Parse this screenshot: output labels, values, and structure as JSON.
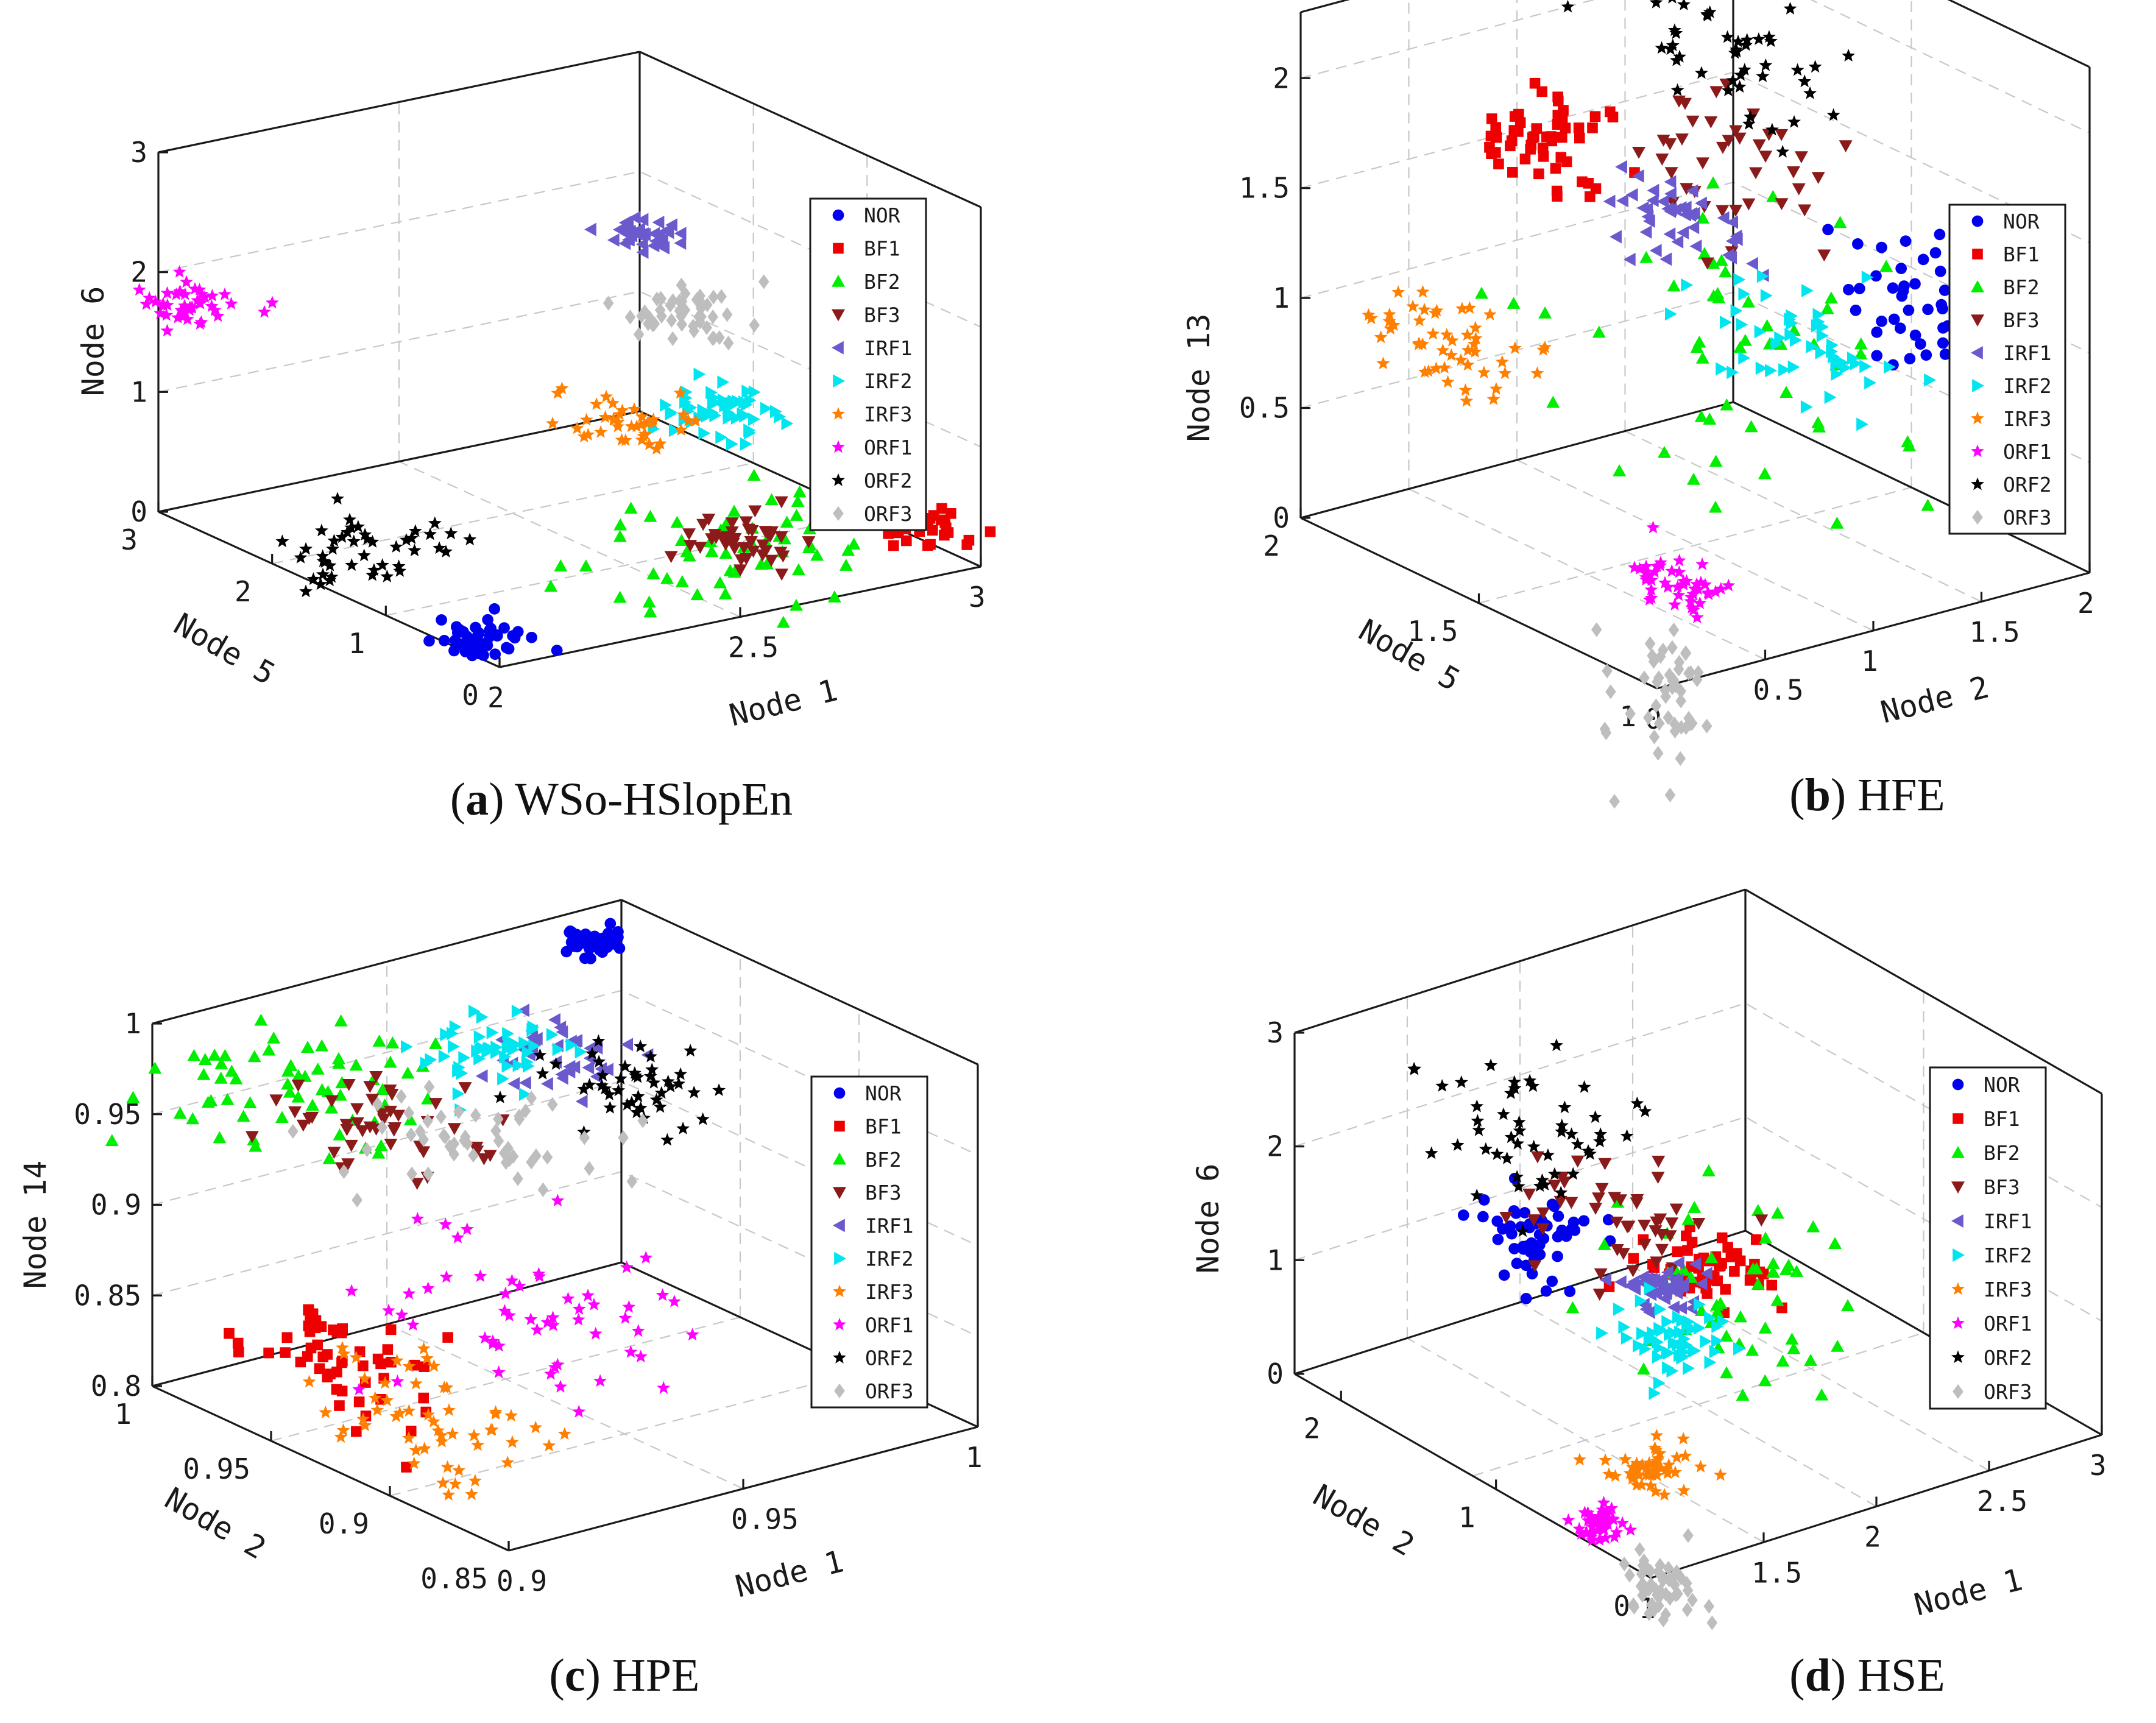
{
  "figure": {
    "series_colors": {
      "NOR": "#0000ee",
      "BF1": "#ee0000",
      "BF2": "#00ee00",
      "BF3": "#8b1a1a",
      "IRF1": "#6a5acd",
      "IRF2": "#00e5ee",
      "IRF3": "#ff7f00",
      "ORF1": "#ff00ff",
      "ORF2": "#000000",
      "ORF3": "#bebebe"
    },
    "series_markers": {
      "NOR": "circle",
      "BF1": "square",
      "BF2": "triangle-up",
      "BF3": "triangle-down",
      "IRF1": "triangle-left",
      "IRF2": "triangle-right",
      "IRF3": "star",
      "ORF1": "star",
      "ORF2": "star",
      "ORF3": "diamond"
    }
  },
  "chart_data": [
    {
      "type": "scatter",
      "panel": "a",
      "caption_letter": "a",
      "caption_text": "WSo-HSlopEn",
      "x_axis": {
        "label": "Node 1",
        "range": [
          2,
          3
        ],
        "ticks": [
          "2",
          "2.5",
          "3"
        ]
      },
      "y_axis": {
        "label": "Node 5",
        "range": [
          0,
          3
        ],
        "ticks": [
          "0",
          "1",
          "2",
          "3"
        ]
      },
      "z_axis": {
        "label": "Node 6",
        "range": [
          0,
          3
        ],
        "ticks": [
          "0",
          "1",
          "2",
          "3"
        ]
      },
      "legend": [
        "NOR",
        "BF1",
        "BF2",
        "BF3",
        "IRF1",
        "IRF2",
        "IRF3",
        "ORF1",
        "ORF2",
        "ORF3"
      ],
      "clusters": [
        {
          "name": "NOR",
          "center": [
            2.05,
            0.35,
            0.05
          ],
          "spread": [
            0.04,
            0.15,
            0.04
          ],
          "n": 45
        },
        {
          "name": "BF1",
          "center": [
            2.95,
            0.35,
            0.25
          ],
          "spread": [
            0.04,
            0.15,
            0.08
          ],
          "n": 50
        },
        {
          "name": "BF2",
          "center": [
            2.55,
            0.1,
            0.55
          ],
          "spread": [
            0.16,
            0.15,
            0.28
          ],
          "n": 60
        },
        {
          "name": "BF3",
          "center": [
            2.6,
            0.4,
            0.4
          ],
          "spread": [
            0.06,
            0.15,
            0.08
          ],
          "n": 45
        },
        {
          "name": "IRF1",
          "center": [
            2.95,
            2.7,
            1.65
          ],
          "spread": [
            0.03,
            0.1,
            0.05
          ],
          "n": 40
        },
        {
          "name": "IRF2",
          "center": [
            2.75,
            1.3,
            0.95
          ],
          "spread": [
            0.05,
            0.15,
            0.12
          ],
          "n": 55
        },
        {
          "name": "IRF3",
          "center": [
            2.5,
            1.0,
            1.2
          ],
          "spread": [
            0.05,
            0.2,
            0.05
          ],
          "n": 40
        },
        {
          "name": "ORF1",
          "center": [
            2.05,
            2.95,
            1.7
          ],
          "spread": [
            0.05,
            0.15,
            0.03
          ],
          "n": 45
        },
        {
          "name": "ORF2",
          "center": [
            2.05,
            1.4,
            0.35
          ],
          "spread": [
            0.08,
            0.2,
            0.12
          ],
          "n": 45
        },
        {
          "name": "ORF3",
          "center": [
            2.9,
            2.2,
            1.25
          ],
          "spread": [
            0.05,
            0.15,
            0.12
          ],
          "n": 50
        }
      ]
    },
    {
      "type": "scatter",
      "panel": "b",
      "caption_letter": "b",
      "caption_text": "HFE",
      "x_axis": {
        "label": "Node 2",
        "range": [
          0,
          2
        ],
        "ticks": [
          "0",
          "0.5",
          "1",
          "1.5",
          "2"
        ]
      },
      "y_axis": {
        "label": "Node 5",
        "range": [
          1,
          2
        ],
        "ticks": [
          "1",
          "1.5",
          "2"
        ]
      },
      "z_axis": {
        "label": "Node 13",
        "range": [
          0,
          2.3
        ],
        "ticks": [
          "0",
          "0.5",
          "1",
          "1.5",
          "2"
        ]
      },
      "legend": [
        "NOR",
        "BF1",
        "BF2",
        "BF3",
        "IRF1",
        "IRF2",
        "IRF3",
        "ORF1",
        "ORF2",
        "ORF3"
      ],
      "clusters": [
        {
          "name": "NOR",
          "center": [
            1.55,
            1.15,
            1.2
          ],
          "spread": [
            0.12,
            0.1,
            0.12
          ],
          "n": 55
        },
        {
          "name": "BF1",
          "center": [
            0.9,
            1.85,
            1.6
          ],
          "spread": [
            0.12,
            0.08,
            0.1
          ],
          "n": 55
        },
        {
          "name": "BF2",
          "center": [
            0.95,
            1.3,
            1.0
          ],
          "spread": [
            0.3,
            0.25,
            0.35
          ],
          "n": 55
        },
        {
          "name": "BF3",
          "center": [
            1.25,
            1.55,
            1.65
          ],
          "spread": [
            0.12,
            0.15,
            0.15
          ],
          "n": 40
        },
        {
          "name": "IRF1",
          "center": [
            1.05,
            1.6,
            1.4
          ],
          "spread": [
            0.08,
            0.1,
            0.08
          ],
          "n": 45
        },
        {
          "name": "IRF2",
          "center": [
            1.1,
            1.25,
            1.05
          ],
          "spread": [
            0.12,
            0.15,
            0.15
          ],
          "n": 50
        },
        {
          "name": "IRF3",
          "center": [
            0.4,
            1.8,
            0.8
          ],
          "spread": [
            0.1,
            0.1,
            0.15
          ],
          "n": 50
        },
        {
          "name": "ORF1",
          "center": [
            0.35,
            1.15,
            0.25
          ],
          "spread": [
            0.06,
            0.06,
            0.06
          ],
          "n": 45
        },
        {
          "name": "ORF2",
          "center": [
            1.35,
            1.6,
            2.05
          ],
          "spread": [
            0.15,
            0.15,
            0.13
          ],
          "n": 45
        },
        {
          "name": "ORF3",
          "center": [
            0.25,
            1.15,
            -0.2
          ],
          "spread": [
            0.07,
            0.06,
            0.15
          ],
          "n": 50
        }
      ]
    },
    {
      "type": "scatter",
      "panel": "c",
      "caption_letter": "c",
      "caption_text": "HPE",
      "x_axis": {
        "label": "Node 1",
        "range": [
          0.9,
          1
        ],
        "ticks": [
          "0.9",
          "0.95",
          "1"
        ]
      },
      "y_axis": {
        "label": "Node 2",
        "range": [
          0.85,
          1
        ],
        "ticks": [
          "0.85",
          "0.9",
          "0.95",
          "1"
        ]
      },
      "z_axis": {
        "label": "Node 14",
        "range": [
          0.8,
          1.0
        ],
        "ticks": [
          "0.8",
          "0.85",
          "0.9",
          "0.95",
          "1"
        ]
      },
      "legend": [
        "NOR",
        "BF1",
        "BF2",
        "BF3",
        "IRF1",
        "IRF2",
        "IRF3",
        "ORF1",
        "ORF2",
        "ORF3"
      ],
      "clusters": [
        {
          "name": "NOR",
          "center": [
            0.993,
            0.995,
            0.985
          ],
          "spread": [
            0.003,
            0.003,
            0.003
          ],
          "n": 40
        },
        {
          "name": "BF1",
          "center": [
            0.905,
            0.935,
            0.85
          ],
          "spread": [
            0.005,
            0.02,
            0.015
          ],
          "n": 55
        },
        {
          "name": "BF2",
          "center": [
            0.915,
            0.965,
            0.975
          ],
          "spread": [
            0.012,
            0.02,
            0.012
          ],
          "n": 65
        },
        {
          "name": "BF3",
          "center": [
            0.925,
            0.955,
            0.96
          ],
          "spread": [
            0.01,
            0.015,
            0.01
          ],
          "n": 45
        },
        {
          "name": "IRF1",
          "center": [
            0.96,
            0.945,
            0.975
          ],
          "spread": [
            0.006,
            0.008,
            0.006
          ],
          "n": 40
        },
        {
          "name": "IRF2",
          "center": [
            0.95,
            0.955,
            0.98
          ],
          "spread": [
            0.008,
            0.01,
            0.006
          ],
          "n": 50
        },
        {
          "name": "IRF3",
          "center": [
            0.91,
            0.905,
            0.835
          ],
          "spread": [
            0.008,
            0.02,
            0.015
          ],
          "n": 55
        },
        {
          "name": "ORF1",
          "center": [
            0.935,
            0.905,
            0.87
          ],
          "spread": [
            0.012,
            0.025,
            0.012
          ],
          "n": 55
        },
        {
          "name": "ORF2",
          "center": [
            0.965,
            0.925,
            0.965
          ],
          "spread": [
            0.008,
            0.015,
            0.01
          ],
          "n": 45
        },
        {
          "name": "ORF3",
          "center": [
            0.935,
            0.935,
            0.95
          ],
          "spread": [
            0.01,
            0.015,
            0.008
          ],
          "n": 50
        }
      ]
    },
    {
      "type": "scatter",
      "panel": "d",
      "caption_letter": "d",
      "caption_text": "HSE",
      "x_axis": {
        "label": "Node 1",
        "range": [
          1,
          3
        ],
        "ticks": [
          "1",
          "1.5",
          "2",
          "2.5",
          "3"
        ]
      },
      "y_axis": {
        "label": "Node 2",
        "range": [
          0,
          2.3
        ],
        "ticks": [
          "0",
          "1",
          "2"
        ]
      },
      "z_axis": {
        "label": "Node 6",
        "range": [
          0,
          3
        ],
        "ticks": [
          "0",
          "1",
          "2",
          "3"
        ]
      },
      "legend": [
        "NOR",
        "BF1",
        "BF2",
        "BF3",
        "IRF1",
        "IRF2",
        "IRF3",
        "ORF1",
        "ORF2",
        "ORF3"
      ],
      "clusters": [
        {
          "name": "NOR",
          "center": [
            1.6,
            1.6,
            1.4
          ],
          "spread": [
            0.12,
            0.15,
            0.15
          ],
          "n": 55
        },
        {
          "name": "BF1",
          "center": [
            2.0,
            1.1,
            1.2
          ],
          "spread": [
            0.12,
            0.15,
            0.15
          ],
          "n": 55
        },
        {
          "name": "BF2",
          "center": [
            2.1,
            1.1,
            0.95
          ],
          "spread": [
            0.2,
            0.3,
            0.35
          ],
          "n": 55
        },
        {
          "name": "BF3",
          "center": [
            1.8,
            1.4,
            1.6
          ],
          "spread": [
            0.15,
            0.2,
            0.25
          ],
          "n": 45
        },
        {
          "name": "IRF1",
          "center": [
            1.85,
            1.2,
            1.1
          ],
          "spread": [
            0.08,
            0.1,
            0.1
          ],
          "n": 45
        },
        {
          "name": "IRF2",
          "center": [
            1.8,
            1.0,
            0.8
          ],
          "spread": [
            0.1,
            0.15,
            0.12
          ],
          "n": 55
        },
        {
          "name": "IRF3",
          "center": [
            1.4,
            0.6,
            0.25
          ],
          "spread": [
            0.08,
            0.1,
            0.08
          ],
          "n": 45
        },
        {
          "name": "ORF1",
          "center": [
            1.05,
            0.4,
            0.15
          ],
          "spread": [
            0.05,
            0.06,
            0.05
          ],
          "n": 40
        },
        {
          "name": "ORF2",
          "center": [
            1.6,
            1.6,
            2.3
          ],
          "spread": [
            0.2,
            0.25,
            0.3
          ],
          "n": 50
        },
        {
          "name": "ORF3",
          "center": [
            1.15,
            0.15,
            -0.3
          ],
          "spread": [
            0.06,
            0.08,
            0.15
          ],
          "n": 50
        }
      ]
    }
  ]
}
